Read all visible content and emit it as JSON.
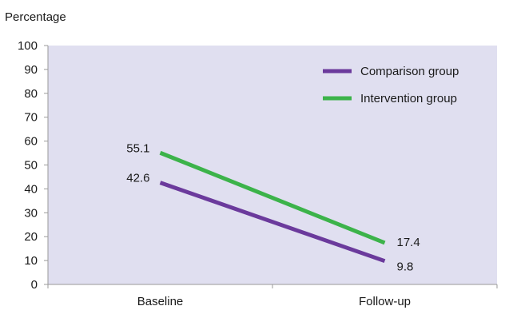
{
  "chart_data": {
    "type": "line",
    "ylabel": "Percentage",
    "xlabel": "",
    "categories": [
      "Baseline",
      "Follow-up"
    ],
    "ylim": [
      0,
      100
    ],
    "yticks": [
      "0",
      "10",
      "20",
      "30",
      "40",
      "50",
      "60",
      "70",
      "80",
      "90",
      "100"
    ],
    "grid": false,
    "legend_position": "top-right",
    "plot_background": "#e0dff0",
    "series": [
      {
        "name": "Comparison group",
        "values": [
          42.6,
          9.8
        ],
        "labels": [
          "42.6",
          "9.8"
        ],
        "color": "#6b3a9c"
      },
      {
        "name": "Intervention group",
        "values": [
          55.1,
          17.4
        ],
        "labels": [
          "55.1",
          "17.4"
        ],
        "color": "#3cb34a"
      }
    ]
  }
}
